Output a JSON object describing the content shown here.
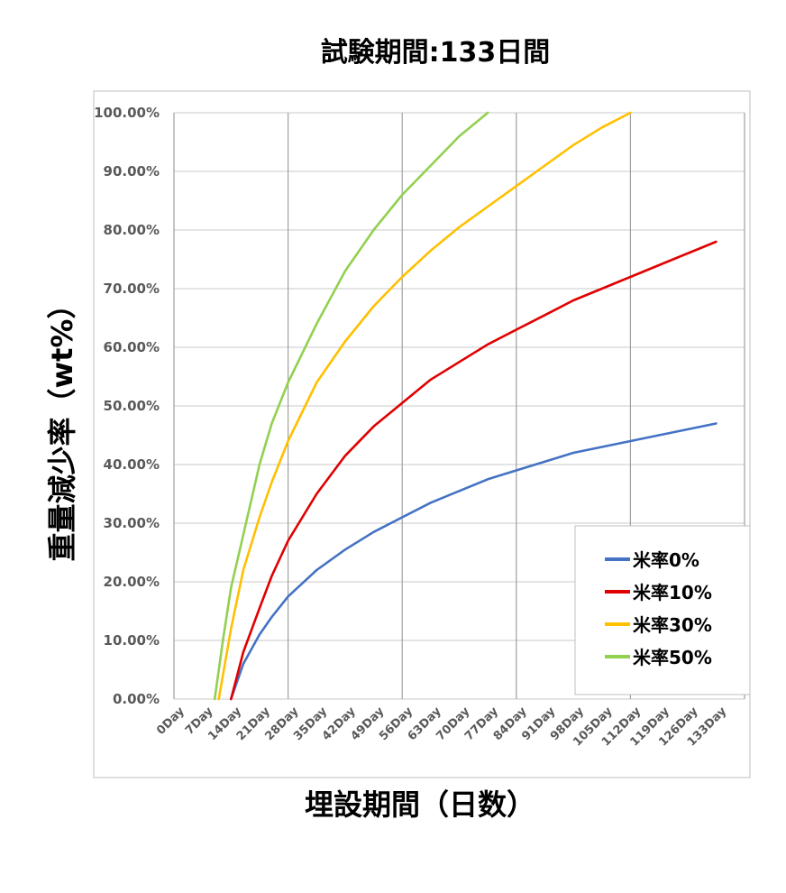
{
  "chart_data": {
    "type": "line",
    "title": "試験期間:133日間",
    "xlabel": "埋設期間（日数）",
    "ylabel": "重量減少率（wt%）",
    "x_ticks": [
      "0Day",
      "7Day",
      "14Day",
      "21Day",
      "28Day",
      "35Day",
      "42Day",
      "49Day",
      "56Day",
      "63Day",
      "70Day",
      "77Day",
      "84Day",
      "91Day",
      "98Day",
      "105Day",
      "112Day",
      "119Day",
      "126Day",
      "133Day"
    ],
    "y_ticks": [
      "0.00%",
      "10.00%",
      "20.00%",
      "30.00%",
      "40.00%",
      "50.00%",
      "60.00%",
      "70.00%",
      "80.00%",
      "90.00%",
      "100.00%"
    ],
    "ylim": [
      0,
      100
    ],
    "grid": true,
    "legend_position": "bottom-right",
    "series": [
      {
        "name": "米率0%",
        "color": "#4472C4",
        "points": [
          [
            14,
            0
          ],
          [
            17,
            6
          ],
          [
            21,
            11
          ],
          [
            24,
            14
          ],
          [
            28,
            17.5
          ],
          [
            35,
            22
          ],
          [
            42,
            25.5
          ],
          [
            49,
            28.5
          ],
          [
            56,
            31
          ],
          [
            63,
            33.5
          ],
          [
            70,
            35.5
          ],
          [
            77,
            37.5
          ],
          [
            84,
            39
          ],
          [
            91,
            40.5
          ],
          [
            98,
            42
          ],
          [
            105,
            43
          ],
          [
            112,
            44
          ],
          [
            119,
            45
          ],
          [
            126,
            46
          ],
          [
            133,
            47
          ]
        ]
      },
      {
        "name": "米率10%",
        "color": "#E00000",
        "points": [
          [
            14,
            0
          ],
          [
            17,
            8
          ],
          [
            21,
            15.5
          ],
          [
            24,
            21
          ],
          [
            28,
            27
          ],
          [
            35,
            35
          ],
          [
            42,
            41.5
          ],
          [
            49,
            46.5
          ],
          [
            56,
            50.5
          ],
          [
            63,
            54.5
          ],
          [
            70,
            57.5
          ],
          [
            77,
            60.5
          ],
          [
            84,
            63
          ],
          [
            91,
            65.5
          ],
          [
            98,
            68
          ],
          [
            105,
            70
          ],
          [
            112,
            72
          ],
          [
            119,
            74
          ],
          [
            126,
            76
          ],
          [
            133,
            78
          ]
        ]
      },
      {
        "name": "米率30%",
        "color": "#FFC000",
        "points": [
          [
            11,
            0
          ],
          [
            14,
            12
          ],
          [
            17,
            22
          ],
          [
            21,
            31
          ],
          [
            24,
            37
          ],
          [
            28,
            44
          ],
          [
            35,
            54
          ],
          [
            42,
            61
          ],
          [
            49,
            67
          ],
          [
            56,
            72
          ],
          [
            63,
            76.5
          ],
          [
            70,
            80.5
          ],
          [
            77,
            84
          ],
          [
            84,
            87.5
          ],
          [
            91,
            91
          ],
          [
            98,
            94.5
          ],
          [
            105,
            97.5
          ],
          [
            112,
            100
          ]
        ]
      },
      {
        "name": "米率50%",
        "color": "#92D050",
        "points": [
          [
            10,
            0
          ],
          [
            12,
            10
          ],
          [
            14,
            19
          ],
          [
            17,
            28
          ],
          [
            21,
            40
          ],
          [
            24,
            47
          ],
          [
            28,
            54
          ],
          [
            35,
            64
          ],
          [
            42,
            73
          ],
          [
            49,
            80
          ],
          [
            56,
            86
          ],
          [
            63,
            91
          ],
          [
            70,
            96
          ],
          [
            77,
            100
          ]
        ]
      }
    ]
  }
}
